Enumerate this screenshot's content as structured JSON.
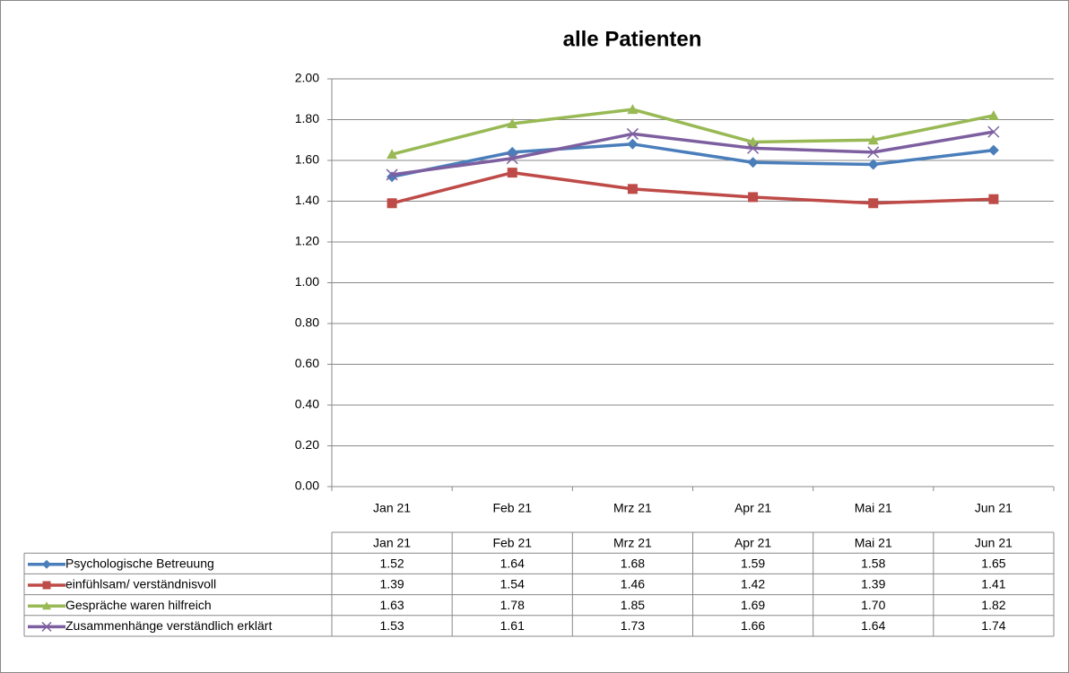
{
  "chart_data": {
    "type": "line",
    "title": "alle Patienten",
    "categories": [
      "Jan 21",
      "Feb 21",
      "Mrz 21",
      "Apr 21",
      "Mai 21",
      "Jun 21"
    ],
    "series": [
      {
        "name": "Psychologische  Betreuung",
        "color": "#4a7ebb",
        "marker": "diamond",
        "values": [
          1.52,
          1.64,
          1.68,
          1.59,
          1.58,
          1.65
        ],
        "value_labels": [
          "1.52",
          "1.64",
          "1.68",
          "1.59",
          "1.58",
          "1.65"
        ]
      },
      {
        "name": "einfühlsam/ verständnisvoll",
        "color": "#be4b48",
        "marker": "square",
        "values": [
          1.39,
          1.54,
          1.46,
          1.42,
          1.39,
          1.41
        ],
        "value_labels": [
          "1.39",
          "1.54",
          "1.46",
          "1.42",
          "1.39",
          "1.41"
        ]
      },
      {
        "name": "Gespräche waren hilfreich",
        "color": "#98b954",
        "marker": "triangle",
        "values": [
          1.63,
          1.78,
          1.85,
          1.69,
          1.7,
          1.82
        ],
        "value_labels": [
          "1.63",
          "1.78",
          "1.85",
          "1.69",
          "1.70",
          "1.82"
        ]
      },
      {
        "name": "Zusammenhänge verständlich erklärt",
        "color": "#7d5fa0",
        "marker": "x",
        "values": [
          1.53,
          1.61,
          1.73,
          1.66,
          1.64,
          1.74
        ],
        "value_labels": [
          "1.53",
          "1.61",
          "1.73",
          "1.66",
          "1.64",
          "1.74"
        ]
      }
    ],
    "ylim": [
      0,
      2
    ],
    "yticks": [
      {
        "value": 0,
        "label": "0.00"
      },
      {
        "value": 0.2,
        "label": "0.20"
      },
      {
        "value": 0.4,
        "label": "0.40"
      },
      {
        "value": 0.6,
        "label": "0.60"
      },
      {
        "value": 0.8,
        "label": "0.80"
      },
      {
        "value": 1,
        "label": "1.00"
      },
      {
        "value": 1.2,
        "label": "1.20"
      },
      {
        "value": 1.4,
        "label": "1.40"
      },
      {
        "value": 1.6,
        "label": "1.60"
      },
      {
        "value": 1.8,
        "label": "1.80"
      },
      {
        "value": 2,
        "label": "2.00"
      }
    ],
    "grid": true,
    "data_table": true
  }
}
